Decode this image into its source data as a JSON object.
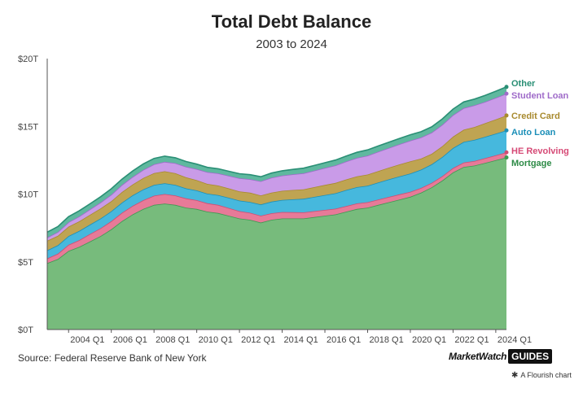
{
  "title": "Total Debt Balance",
  "subtitle": "2003 to 2024",
  "source": "Source: Federal Reserve Bank of New York",
  "brand": {
    "name": "MarketWatch",
    "badge": "GUIDES"
  },
  "flourish": {
    "icon": "asterisk-icon",
    "text": "A Flourish chart"
  },
  "chart_data": {
    "type": "area",
    "stacked": true,
    "xlabel": "",
    "ylabel": "",
    "x": [
      2003.0,
      2003.5,
      2004.0,
      2004.5,
      2005.0,
      2005.5,
      2006.0,
      2006.5,
      2007.0,
      2007.5,
      2008.0,
      2008.5,
      2009.0,
      2009.5,
      2010.0,
      2010.5,
      2011.0,
      2011.5,
      2012.0,
      2012.5,
      2013.0,
      2013.5,
      2014.0,
      2014.5,
      2015.0,
      2015.5,
      2016.0,
      2016.5,
      2017.0,
      2017.5,
      2018.0,
      2018.5,
      2019.0,
      2019.5,
      2020.0,
      2020.5,
      2021.0,
      2021.5,
      2022.0,
      2022.5,
      2023.0,
      2023.5,
      2024.0,
      2024.5
    ],
    "xlim": [
      2003.0,
      2024.5
    ],
    "xticks": [
      {
        "value": 2004.0,
        "label": "2004 Q1"
      },
      {
        "value": 2006.0,
        "label": "2006 Q1"
      },
      {
        "value": 2008.0,
        "label": "2008 Q1"
      },
      {
        "value": 2010.0,
        "label": "2010 Q1"
      },
      {
        "value": 2012.0,
        "label": "2012 Q1"
      },
      {
        "value": 2014.0,
        "label": "2014 Q1"
      },
      {
        "value": 2016.0,
        "label": "2016 Q1"
      },
      {
        "value": 2018.0,
        "label": "2018 Q1"
      },
      {
        "value": 2020.0,
        "label": "2020 Q1"
      },
      {
        "value": 2022.0,
        "label": "2022 Q1"
      },
      {
        "value": 2024.0,
        "label": "2024 Q1"
      }
    ],
    "ylim": [
      0,
      20
    ],
    "yticks": [
      {
        "value": 0,
        "label": "$0T"
      },
      {
        "value": 5,
        "label": "$5T"
      },
      {
        "value": 10,
        "label": "$10T"
      },
      {
        "value": 15,
        "label": "$15T"
      },
      {
        "value": 20,
        "label": "$20T"
      }
    ],
    "grid": false,
    "series": [
      {
        "name": "Mortgage",
        "color": "#77bb7c",
        "line": "#3d9a52",
        "label_color": "#2e8b47",
        "values": [
          4.9,
          5.2,
          5.8,
          6.1,
          6.5,
          6.9,
          7.4,
          8.0,
          8.5,
          8.9,
          9.2,
          9.3,
          9.2,
          9.0,
          8.9,
          8.7,
          8.6,
          8.4,
          8.2,
          8.1,
          7.9,
          8.1,
          8.2,
          8.2,
          8.2,
          8.3,
          8.4,
          8.5,
          8.7,
          8.9,
          9.0,
          9.2,
          9.4,
          9.6,
          9.8,
          10.1,
          10.5,
          11.0,
          11.6,
          12.0,
          12.1,
          12.3,
          12.5,
          12.7
        ]
      },
      {
        "name": "HE Revolving",
        "color": "#e77a98",
        "line": "#d04c72",
        "label_color": "#d64a76",
        "values": [
          0.35,
          0.4,
          0.45,
          0.5,
          0.55,
          0.58,
          0.6,
          0.62,
          0.63,
          0.65,
          0.68,
          0.7,
          0.7,
          0.68,
          0.65,
          0.62,
          0.6,
          0.57,
          0.54,
          0.52,
          0.5,
          0.48,
          0.47,
          0.46,
          0.45,
          0.44,
          0.43,
          0.42,
          0.42,
          0.41,
          0.4,
          0.4,
          0.39,
          0.38,
          0.37,
          0.35,
          0.33,
          0.32,
          0.32,
          0.33,
          0.34,
          0.35,
          0.36,
          0.38
        ]
      },
      {
        "name": "Auto Loan",
        "color": "#46b8dd",
        "line": "#1c8fb8",
        "label_color": "#1c8fb8",
        "values": [
          0.6,
          0.62,
          0.65,
          0.68,
          0.7,
          0.72,
          0.73,
          0.75,
          0.78,
          0.8,
          0.8,
          0.8,
          0.78,
          0.74,
          0.72,
          0.71,
          0.73,
          0.76,
          0.78,
          0.8,
          0.83,
          0.86,
          0.9,
          0.95,
          1.0,
          1.05,
          1.1,
          1.14,
          1.18,
          1.2,
          1.22,
          1.26,
          1.3,
          1.33,
          1.35,
          1.35,
          1.37,
          1.42,
          1.48,
          1.52,
          1.56,
          1.58,
          1.6,
          1.62
        ]
      },
      {
        "name": "Credit Card",
        "color": "#bfa452",
        "line": "#a88a2e",
        "label_color": "#a88a2e",
        "values": [
          0.7,
          0.7,
          0.7,
          0.71,
          0.72,
          0.74,
          0.75,
          0.78,
          0.8,
          0.84,
          0.87,
          0.88,
          0.86,
          0.82,
          0.76,
          0.72,
          0.7,
          0.69,
          0.68,
          0.68,
          0.67,
          0.67,
          0.67,
          0.69,
          0.7,
          0.72,
          0.74,
          0.76,
          0.78,
          0.8,
          0.82,
          0.84,
          0.86,
          0.88,
          0.9,
          0.82,
          0.77,
          0.8,
          0.84,
          0.9,
          0.95,
          1.0,
          1.05,
          1.1
        ]
      },
      {
        "name": "Student Loan",
        "color": "#c99be8",
        "line": "#9f6bc9",
        "label_color": "#9f6bc9",
        "values": [
          0.24,
          0.28,
          0.32,
          0.36,
          0.4,
          0.44,
          0.48,
          0.52,
          0.56,
          0.6,
          0.65,
          0.7,
          0.74,
          0.78,
          0.82,
          0.87,
          0.9,
          0.93,
          0.97,
          1.0,
          1.05,
          1.1,
          1.13,
          1.16,
          1.19,
          1.22,
          1.26,
          1.3,
          1.33,
          1.36,
          1.4,
          1.43,
          1.46,
          1.5,
          1.53,
          1.56,
          1.57,
          1.58,
          1.59,
          1.6,
          1.6,
          1.58,
          1.6,
          1.61
        ]
      },
      {
        "name": "Other",
        "color": "#5fb89f",
        "line": "#2a8f75",
        "label_color": "#2a8f75",
        "values": [
          0.4,
          0.4,
          0.41,
          0.41,
          0.41,
          0.42,
          0.43,
          0.43,
          0.43,
          0.43,
          0.43,
          0.42,
          0.4,
          0.38,
          0.36,
          0.35,
          0.34,
          0.33,
          0.33,
          0.33,
          0.33,
          0.34,
          0.35,
          0.36,
          0.37,
          0.38,
          0.38,
          0.39,
          0.4,
          0.41,
          0.42,
          0.42,
          0.42,
          0.42,
          0.43,
          0.42,
          0.42,
          0.43,
          0.44,
          0.45,
          0.46,
          0.47,
          0.48,
          0.5
        ]
      }
    ]
  }
}
